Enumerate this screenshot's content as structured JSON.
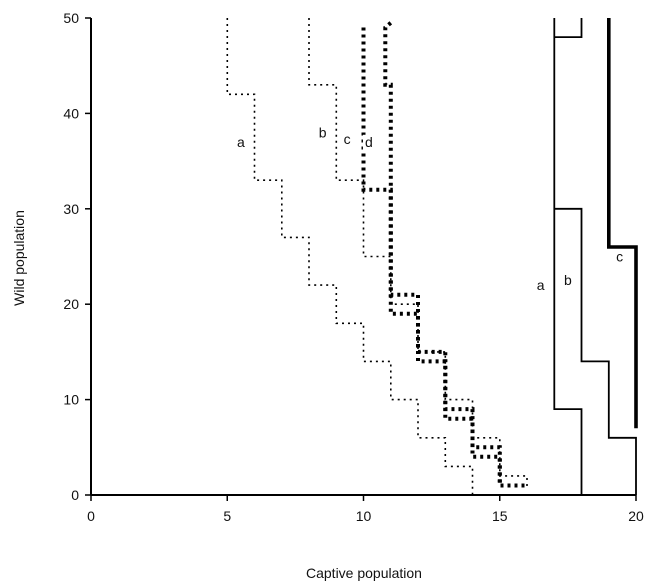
{
  "chart_data": {
    "type": "line",
    "xlabel": "Captive population",
    "ylabel": "Wild population",
    "xlim": [
      0,
      20
    ],
    "ylim": [
      0,
      50
    ],
    "xticks": [
      0,
      5,
      10,
      15,
      20
    ],
    "yticks": [
      0,
      10,
      20,
      30,
      40,
      50
    ],
    "grid": false,
    "series": [
      {
        "label": "a",
        "group": "dotted",
        "color": "#000000",
        "points": [
          [
            5,
            50
          ],
          [
            5,
            42
          ],
          [
            6,
            42
          ],
          [
            6,
            33
          ],
          [
            7,
            33
          ],
          [
            7,
            27
          ],
          [
            8,
            27
          ],
          [
            8,
            22
          ],
          [
            9,
            22
          ],
          [
            9,
            18
          ],
          [
            10,
            18
          ],
          [
            10,
            14
          ],
          [
            11,
            14
          ],
          [
            11,
            10
          ],
          [
            12,
            10
          ],
          [
            12,
            6
          ],
          [
            13,
            6
          ],
          [
            13,
            3
          ],
          [
            14,
            3
          ],
          [
            14,
            0
          ]
        ],
        "label_pos": [
          5.5,
          36.5
        ]
      },
      {
        "label": "b",
        "group": "dotted",
        "color": "#000000",
        "points": [
          [
            8,
            50
          ],
          [
            8,
            43
          ],
          [
            9,
            43
          ],
          [
            9,
            33
          ],
          [
            10,
            33
          ],
          [
            10,
            25
          ],
          [
            11,
            25
          ],
          [
            11,
            20
          ],
          [
            12,
            20
          ],
          [
            12,
            15
          ],
          [
            13,
            15
          ],
          [
            13,
            10
          ],
          [
            14,
            10
          ],
          [
            14,
            6
          ],
          [
            15,
            6
          ],
          [
            15,
            2
          ],
          [
            16,
            2
          ],
          [
            16,
            0.8
          ]
        ],
        "label_pos": [
          8.5,
          37.5
        ]
      },
      {
        "label": "c",
        "group": "dotted-heavy",
        "color": "#000000",
        "points": [
          [
            10,
            49
          ],
          [
            10,
            32
          ],
          [
            11,
            32
          ],
          [
            11,
            21
          ],
          [
            12,
            21
          ],
          [
            12,
            14
          ],
          [
            13,
            14
          ],
          [
            13,
            8
          ],
          [
            14,
            8
          ],
          [
            14,
            4
          ],
          [
            15,
            4
          ],
          [
            15,
            1
          ],
          [
            16,
            1
          ]
        ],
        "label_pos": [
          9.4,
          36.8
        ]
      },
      {
        "label": "d",
        "group": "dotted-heavy",
        "color": "#000000",
        "points": [
          [
            11,
            49.5
          ],
          [
            10.8,
            49
          ],
          [
            10.8,
            43
          ],
          [
            11,
            43
          ],
          [
            11,
            19
          ],
          [
            12,
            19
          ],
          [
            12,
            15
          ],
          [
            13,
            15
          ],
          [
            13,
            9
          ],
          [
            14,
            9
          ],
          [
            14,
            5
          ],
          [
            15,
            5
          ],
          [
            15,
            1
          ]
        ],
        "label_pos": [
          10.2,
          36.5
        ]
      },
      {
        "label": "a",
        "group": "solid",
        "color": "#000000",
        "points": [
          [
            17,
            50
          ],
          [
            17,
            9
          ],
          [
            18,
            9
          ],
          [
            18,
            0
          ]
        ],
        "extra": [
          [
            [
              17,
              48
            ],
            [
              18,
              48
            ],
            [
              18,
              50
            ]
          ]
        ],
        "label_pos": [
          16.5,
          21.5
        ]
      },
      {
        "label": "b",
        "group": "solid",
        "color": "#000000",
        "points": [
          [
            17,
            30
          ],
          [
            18,
            30
          ],
          [
            18,
            14
          ],
          [
            19,
            14
          ],
          [
            19,
            6
          ],
          [
            20,
            6
          ],
          [
            20,
            0
          ]
        ],
        "label_pos": [
          17.5,
          22
        ]
      },
      {
        "label": "c",
        "group": "solid-heavy",
        "color": "#000000",
        "points": [
          [
            19,
            50
          ],
          [
            19,
            26
          ],
          [
            20,
            26
          ],
          [
            20,
            7
          ]
        ],
        "label_pos": [
          19.4,
          24.5
        ]
      }
    ]
  }
}
